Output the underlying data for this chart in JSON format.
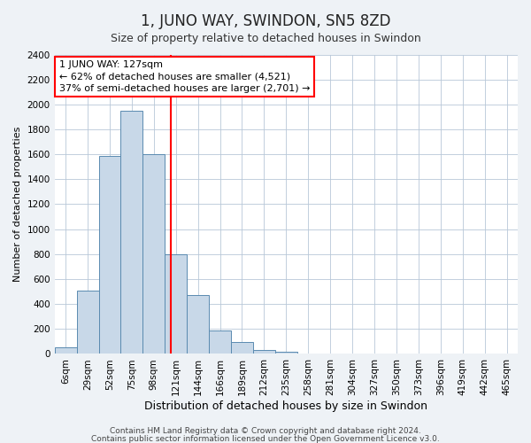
{
  "title": "1, JUNO WAY, SWINDON, SN5 8ZD",
  "subtitle": "Size of property relative to detached houses in Swindon",
  "xlabel": "Distribution of detached houses by size in Swindon",
  "ylabel": "Number of detached properties",
  "bin_labels": [
    "6sqm",
    "29sqm",
    "52sqm",
    "75sqm",
    "98sqm",
    "121sqm",
    "144sqm",
    "166sqm",
    "189sqm",
    "212sqm",
    "235sqm",
    "258sqm",
    "281sqm",
    "304sqm",
    "327sqm",
    "350sqm",
    "373sqm",
    "396sqm",
    "419sqm",
    "442sqm",
    "465sqm"
  ],
  "bar_heights": [
    55,
    510,
    1590,
    1950,
    1600,
    800,
    470,
    185,
    95,
    35,
    20,
    0,
    0,
    0,
    0,
    5,
    0,
    0,
    0,
    0,
    0
  ],
  "bar_color": "#c8d8e8",
  "bar_edge_color": "#5a8ab0",
  "vline_color": "red",
  "vline_x_value": 127,
  "bin_starts": [
    6,
    29,
    52,
    75,
    98,
    121,
    144,
    166,
    189,
    212,
    235,
    258,
    281,
    304,
    327,
    350,
    373,
    396,
    419,
    442,
    465
  ],
  "annotation_text": "1 JUNO WAY: 127sqm\n← 62% of detached houses are smaller (4,521)\n37% of semi-detached houses are larger (2,701) →",
  "annotation_box_facecolor": "white",
  "annotation_box_edgecolor": "red",
  "ylim": [
    0,
    2400
  ],
  "yticks": [
    0,
    200,
    400,
    600,
    800,
    1000,
    1200,
    1400,
    1600,
    1800,
    2000,
    2200,
    2400
  ],
  "footnote1": "Contains HM Land Registry data © Crown copyright and database right 2024.",
  "footnote2": "Contains public sector information licensed under the Open Government Licence v3.0.",
  "bg_color": "#eef2f6",
  "plot_bg_color": "white",
  "grid_color": "#b8c8d8",
  "title_fontsize": 12,
  "subtitle_fontsize": 9,
  "xlabel_fontsize": 9,
  "ylabel_fontsize": 8,
  "tick_fontsize": 7.5,
  "annotation_fontsize": 8
}
